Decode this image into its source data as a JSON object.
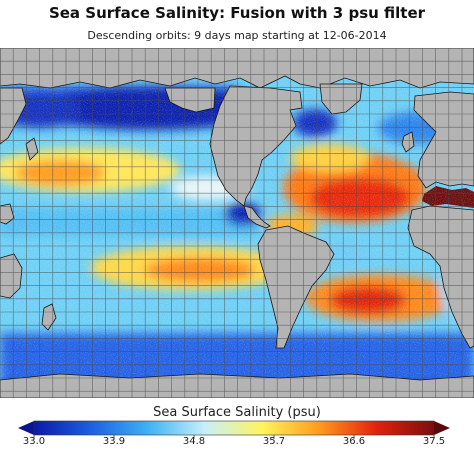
{
  "title": "Sea Surface Salinity: Fusion with 3 psu filter",
  "subtitle": "Descending orbits: 9 days map starting at 12-06-2014",
  "colorbar": {
    "label": "Sea Surface Salinity (psu)",
    "ticks": [
      "33.0",
      "33.9",
      "34.8",
      "35.7",
      "36.6",
      "37.5"
    ],
    "min": 33.0,
    "max": 37.5,
    "colors": [
      "#0b1aa8",
      "#1e5fe0",
      "#3fb2f4",
      "#c8f0fa",
      "#fff45c",
      "#ff9a1e",
      "#e0220d",
      "#7a0f0f"
    ]
  },
  "map": {
    "land_color": "#b4b4b4",
    "grid_color": "#4a4a4a",
    "coast_color": "#151515"
  }
}
